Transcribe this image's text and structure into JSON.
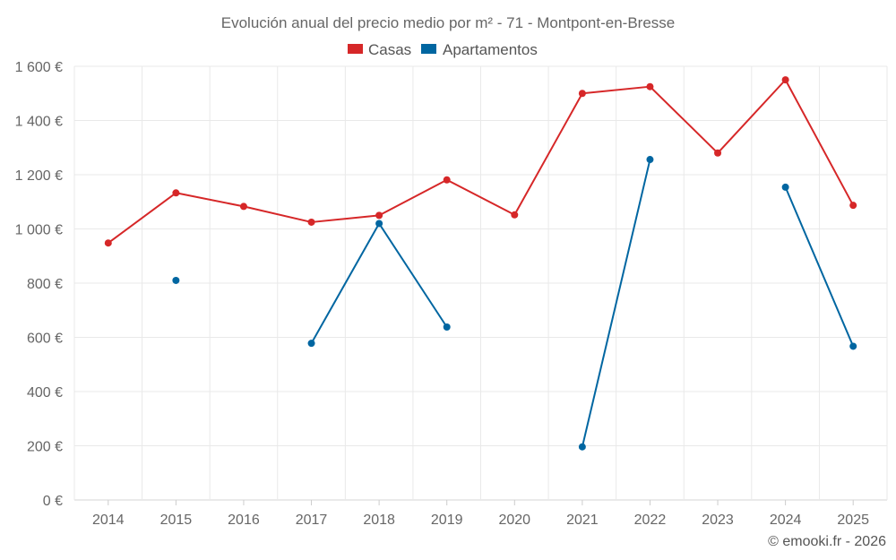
{
  "chart_data": {
    "type": "line",
    "title": "Evolución anual del precio medio por m² - 71 - Montpont-en-Bresse",
    "categories": [
      "2014",
      "2015",
      "2016",
      "2017",
      "2018",
      "2019",
      "2020",
      "2021",
      "2022",
      "2023",
      "2024",
      "2025"
    ],
    "ylim": [
      0,
      1600
    ],
    "yticks": [
      0,
      200,
      400,
      600,
      800,
      1000,
      1200,
      1400,
      1600
    ],
    "ytick_labels": [
      "0 €",
      "200 €",
      "400 €",
      "600 €",
      "800 €",
      "1 000 €",
      "1 200 €",
      "1 400 €",
      "1 600 €"
    ],
    "xlabel": "",
    "ylabel": "",
    "grid": true,
    "legend_position": "top-center",
    "series": [
      {
        "name": "Casas",
        "color": "#d62728",
        "values": [
          948,
          1133,
          1083,
          1025,
          1050,
          1181,
          1052,
          1500,
          1525,
          1280,
          1550,
          1087
        ]
      },
      {
        "name": "Apartamentos",
        "color": "#0066a1",
        "values": [
          null,
          810,
          null,
          578,
          1020,
          638,
          null,
          196,
          1256,
          null,
          1154,
          567
        ]
      }
    ]
  },
  "credit": "© emooki.fr - 2026"
}
